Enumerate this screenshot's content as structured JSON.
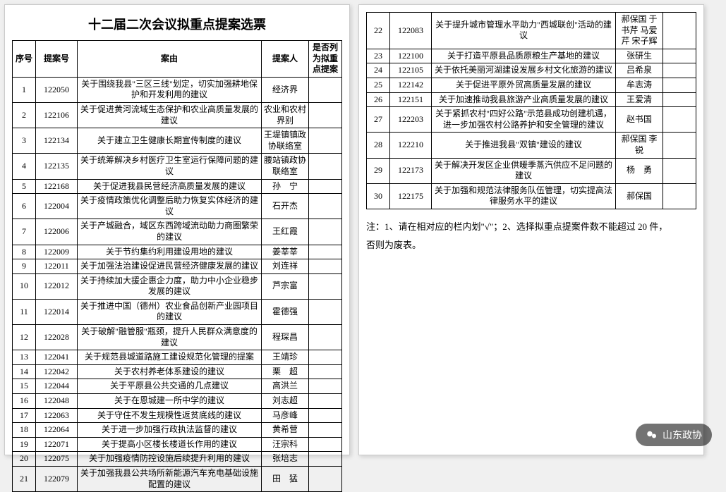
{
  "title": "十二届二次会议拟重点提案选票",
  "headers": {
    "idx": "序号",
    "num": "提案号",
    "subject": "案由",
    "person": "提案人",
    "flag": "是否列为拟重点提案"
  },
  "rows1": [
    {
      "idx": "1",
      "num": "122050",
      "subject": "关于围绕我县\"三区三线\"划定，切实加强耕地保护和开发利用的建议",
      "person": "经济界"
    },
    {
      "idx": "2",
      "num": "122106",
      "subject": "关于促进黄河流域生态保护和农业高质量发展的建议",
      "person": "农业和农村界别"
    },
    {
      "idx": "3",
      "num": "122134",
      "subject": "关于建立卫生健康长期宣传制度的建议",
      "person": "王堤镇镇政协联络室"
    },
    {
      "idx": "4",
      "num": "122135",
      "subject": "关于统筹解决乡村医疗卫生室运行保障问题的建议",
      "person": "腰站镇政协联络室"
    },
    {
      "idx": "5",
      "num": "122168",
      "subject": "关于促进我县民营经济高质量发展的建议",
      "person": "孙　宁"
    },
    {
      "idx": "6",
      "num": "122004",
      "subject": "关于疫情政策优化调整后助力恢复实体经济的建议",
      "person": "石开杰"
    },
    {
      "idx": "7",
      "num": "122006",
      "subject": "关于产城融合，域区东西跨域流动助力商圈繁荣的建议",
      "person": "王红霞"
    },
    {
      "idx": "8",
      "num": "122009",
      "subject": "关于节约集约利用建设用地的建议",
      "person": "姜莘莘"
    },
    {
      "idx": "9",
      "num": "122011",
      "subject": "关于加强法治建设促进民营经济健康发展的建议",
      "person": "刘连祥"
    },
    {
      "idx": "10",
      "num": "122012",
      "subject": "关于持续加大援企惠企力度，助力中小企业稳步发展的建议",
      "person": "芦宗富"
    },
    {
      "idx": "11",
      "num": "122014",
      "subject": "关于推进中国（德州）农业食品创新产业园项目的建议",
      "person": "霍德强"
    },
    {
      "idx": "12",
      "num": "122028",
      "subject": "关于破解\"融管服\"瓶颈，提升人民群众满意度的建议",
      "person": "程琛昌"
    },
    {
      "idx": "13",
      "num": "122041",
      "subject": "关于规范县城道路施工建设规范化管理的提案",
      "person": "王靖珍"
    },
    {
      "idx": "14",
      "num": "122042",
      "subject": "关于农村养老体系建设的建议",
      "person": "栗　超"
    },
    {
      "idx": "15",
      "num": "122044",
      "subject": "关于平原县公共交通的几点建议",
      "person": "高洪兰"
    },
    {
      "idx": "16",
      "num": "122048",
      "subject": "关于在恩城建一所中学的建议",
      "person": "刘志超"
    },
    {
      "idx": "17",
      "num": "122063",
      "subject": "关于守住不发生规模性返贫底线的建议",
      "person": "马彦峰"
    },
    {
      "idx": "18",
      "num": "122064",
      "subject": "关于进一步加强行政执法监督的建议",
      "person": "黄希营"
    },
    {
      "idx": "19",
      "num": "122071",
      "subject": "关于提高小区楼长楼道长作用的建议",
      "person": "汪宗科"
    },
    {
      "idx": "20",
      "num": "122075",
      "subject": "关于加强疫情防控设施后续提升利用的建议",
      "person": "张培志"
    },
    {
      "idx": "21",
      "num": "122079",
      "subject": "关于加强我县公共场所新能源汽车充电基础设施配置的建议",
      "person": "田　猛"
    }
  ],
  "rows2": [
    {
      "idx": "22",
      "num": "122083",
      "subject": "关于提升城市管理水平助力\"西城联创\"活动的建议",
      "person": "郝保国 于书芹 马爱芹 宋子辉"
    },
    {
      "idx": "23",
      "num": "122100",
      "subject": "关于打造平原县品质原粮生产基地的建议",
      "person": "张研生"
    },
    {
      "idx": "24",
      "num": "122105",
      "subject": "关于依托美丽河湖建设发展乡村文化旅游的建议",
      "person": "吕希泉"
    },
    {
      "idx": "25",
      "num": "122142",
      "subject": "关于促进平原外贸高质量发展的建议",
      "person": "牟志涛"
    },
    {
      "idx": "26",
      "num": "122151",
      "subject": "关于加速推动我县旅游产业高质量发展的建议",
      "person": "王爱清"
    },
    {
      "idx": "27",
      "num": "122203",
      "subject": "关于紧抓农村\"四好公路\"示范县成功创建机遇，进一步加强农村公路养护和安全管理的建议",
      "person": "赵书国"
    },
    {
      "idx": "28",
      "num": "122210",
      "subject": "关于推进我县\"双镇\"建设的建议",
      "person": "郝保国 李　锐"
    },
    {
      "idx": "29",
      "num": "122173",
      "subject": "关于解决开发区企业供暖季蒸汽供应不足问题的建议",
      "person": "杨　勇"
    },
    {
      "idx": "30",
      "num": "122175",
      "subject": "关于加强和规范法律服务队伍管理，切实提高法律服务水平的建议",
      "person": "郝保国"
    }
  ],
  "note_line1": "注：1、请在相对应的栏内划\"√\"；2、选择拟重点提案件数不能超过 20 件，",
  "note_line2": "否则为废表。",
  "badge_text": "山东政协"
}
